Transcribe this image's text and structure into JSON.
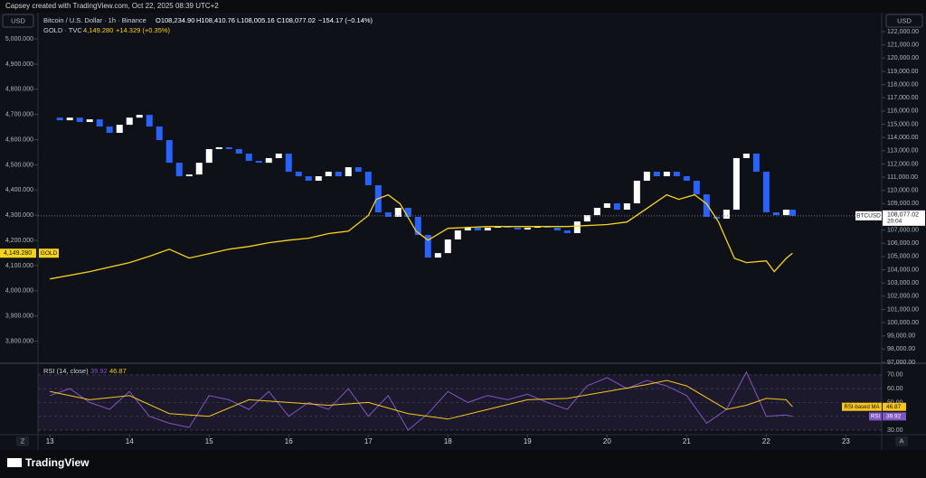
{
  "header": "Capsey created with TradingView.com, Oct 22, 2025 08:39 UTC+2",
  "axis_unit": "USD",
  "buttons": {
    "left": "Z",
    "right": "A"
  },
  "footer": {
    "logo": "TradingView"
  },
  "chart_data": [
    {
      "type": "candlestick",
      "legend": {
        "title": "Bitcoin / U.S. Dollar · 1h · Binance",
        "ohlc": [
          "O108,234.90",
          "H108,410.76",
          "L108,005.16",
          "C108,077.02"
        ],
        "change": "−154.17 (−0.14%)",
        "gold_title": "GOLD · TVC",
        "gold_price": "4,149.280",
        "gold_change": "+14.329 (+0.35%)"
      },
      "xlim": [
        12.85,
        23.45
      ],
      "xticks": [
        13,
        14,
        15,
        16,
        17,
        18,
        19,
        20,
        21,
        22,
        23
      ],
      "ylim": [
        3716,
        5097
      ],
      "yticks": [
        {
          "value": 3800,
          "label": "3,800.000"
        },
        {
          "value": 3900,
          "label": "3,900.000"
        },
        {
          "value": 4000,
          "label": "4,000.000"
        },
        {
          "value": 4100,
          "label": "4,100.000"
        },
        {
          "value": 4200,
          "label": "4,200.000"
        },
        {
          "value": 4300,
          "label": "4,300.000"
        },
        {
          "value": 4400,
          "label": "4,400.000"
        },
        {
          "value": 4500,
          "label": "4,500.000"
        },
        {
          "value": 4600,
          "label": "4,600.000"
        },
        {
          "value": 4700,
          "label": "4,700.000"
        },
        {
          "value": 4800,
          "label": "4,800.000"
        },
        {
          "value": 4900,
          "label": "4,900.000"
        },
        {
          "value": 5000,
          "label": "5,000.000"
        }
      ],
      "y2lim": [
        97000,
        123300
      ],
      "y2ticks": [
        {
          "value": 97000,
          "label": "97,000.00"
        },
        {
          "value": 98000,
          "label": "98,000.00"
        },
        {
          "value": 99000,
          "label": "99,000.00"
        },
        {
          "value": 100000,
          "label": "100,000.00"
        },
        {
          "value": 101000,
          "label": "101,000.00"
        },
        {
          "value": 102000,
          "label": "102,000.00"
        },
        {
          "value": 103000,
          "label": "103,000.00"
        },
        {
          "value": 104000,
          "label": "104,000.00"
        },
        {
          "value": 105000,
          "label": "105,000.00"
        },
        {
          "value": 106000,
          "label": "106,000.00"
        },
        {
          "value": 107000,
          "label": "107,000.00"
        },
        {
          "value": 108000,
          "label": "108,000.00"
        },
        {
          "value": 109000,
          "label": "109,000.00"
        },
        {
          "value": 110000,
          "label": "110,000.00"
        },
        {
          "value": 111000,
          "label": "111,000.00"
        },
        {
          "value": 112000,
          "label": "112,000.00"
        },
        {
          "value": 113000,
          "label": "113,000.00"
        },
        {
          "value": 114000,
          "label": "114,000.00"
        },
        {
          "value": 115000,
          "label": "115,000.00"
        },
        {
          "value": 116000,
          "label": "116,000.00"
        },
        {
          "value": 117000,
          "label": "117,000.00"
        },
        {
          "value": 118000,
          "label": "118,000.00"
        },
        {
          "value": 119000,
          "label": "119,000.00"
        },
        {
          "value": 120000,
          "label": "120,000.00"
        },
        {
          "value": 121000,
          "label": "121,000.00"
        },
        {
          "value": 122000,
          "label": "122,000.00"
        }
      ],
      "series": [
        {
          "name": "BTCUSD",
          "type": "candlestick",
          "axis": "y2",
          "up_color": "#ffffff",
          "down_color": "#2962ff",
          "last_label": "108,077.02",
          "countdown": "20:04",
          "x": [
            13,
            13.125,
            13.25,
            13.375,
            13.5,
            13.625,
            13.75,
            13.875,
            14,
            14.125,
            14.25,
            14.375,
            14.5,
            14.625,
            14.75,
            14.875,
            15,
            15.125,
            15.25,
            15.375,
            15.5,
            15.625,
            15.75,
            15.875,
            16,
            16.125,
            16.25,
            16.375,
            16.5,
            16.625,
            16.75,
            16.875,
            17,
            17.125,
            17.25,
            17.375,
            17.5,
            17.625,
            17.75,
            17.875,
            18,
            18.125,
            18.25,
            18.375,
            18.5,
            18.625,
            18.75,
            18.875,
            19,
            19.125,
            19.25,
            19.375,
            19.5,
            19.625,
            19.75,
            19.875,
            20,
            20.125,
            20.25,
            20.375,
            20.5,
            20.625,
            20.75,
            20.875,
            21,
            21.125,
            21.25,
            21.375,
            21.5,
            21.625,
            21.75,
            21.875,
            22,
            22.125,
            22.25,
            22.33
          ],
          "values": [
            115500,
            115300,
            115500,
            115170,
            115370,
            114830,
            114350,
            114960,
            115500,
            115710,
            114830,
            113800,
            112090,
            111070,
            111200,
            112090,
            113120,
            113260,
            113120,
            112780,
            112230,
            112090,
            112440,
            112780,
            111410,
            111070,
            110730,
            111070,
            111410,
            111070,
            111750,
            111410,
            110390,
            108340,
            108000,
            108680,
            108000,
            106630,
            104920,
            105260,
            106290,
            106970,
            107180,
            106970,
            107180,
            107310,
            107180,
            107040,
            107180,
            107310,
            107180,
            106970,
            106770,
            107650,
            108130,
            108680,
            109020,
            108540,
            109020,
            110730,
            111410,
            111070,
            111410,
            111070,
            110730,
            109700,
            108000,
            107860,
            108540,
            112440,
            112780,
            111410,
            108340,
            108130,
            108540,
            108077.02
          ]
        },
        {
          "name": "GOLD",
          "type": "line",
          "axis": "y",
          "color": "#f7d21e",
          "last_label": "4,149.280",
          "x": [
            13,
            13.5,
            14,
            14.25,
            14.5,
            14.75,
            15,
            15.25,
            15.5,
            15.75,
            16,
            16.25,
            16.5,
            16.75,
            17,
            17.1,
            17.25,
            17.4,
            17.6,
            17.75,
            18,
            18.5,
            19,
            19.5,
            20,
            20.25,
            20.5,
            20.75,
            20.9,
            21.1,
            21.25,
            21.4,
            21.6,
            21.75,
            22,
            22.1,
            22.25,
            22.33
          ],
          "values": [
            4047,
            4076,
            4112,
            4137,
            4165,
            4130,
            4147,
            4165,
            4176,
            4191,
            4201,
            4209,
            4227,
            4237,
            4299,
            4363,
            4381,
            4345,
            4237,
            4201,
            4248,
            4255,
            4255,
            4255,
            4263,
            4273,
            4327,
            4381,
            4363,
            4381,
            4345,
            4273,
            4129,
            4112,
            4119,
            4076,
            4129,
            4149.28
          ]
        }
      ]
    },
    {
      "type": "line",
      "title": "RSI (14, close)",
      "xlim": [
        12.85,
        23.45
      ],
      "ylim": [
        27.4,
        77.1
      ],
      "yticks": [
        {
          "value": 30,
          "label": "30.00"
        },
        {
          "value": 40,
          "label": "40.00"
        },
        {
          "value": 50,
          "label": "50.00"
        },
        {
          "value": 60,
          "label": "60.00"
        },
        {
          "value": 70,
          "label": "70.00"
        }
      ],
      "band": [
        30,
        70
      ],
      "series": [
        {
          "name": "RSI",
          "color": "#7e57c2",
          "x": [
            13,
            13.25,
            13.5,
            13.75,
            14,
            14.25,
            14.5,
            14.75,
            15,
            15.25,
            15.5,
            15.75,
            16,
            16.25,
            16.5,
            16.75,
            17,
            17.25,
            17.5,
            17.75,
            18,
            18.25,
            18.5,
            18.75,
            19,
            19.25,
            19.5,
            19.75,
            20,
            20.25,
            20.5,
            20.75,
            21,
            21.25,
            21.5,
            21.75,
            22,
            22.25,
            22.33
          ],
          "values": [
            55,
            60,
            50,
            45,
            58,
            40,
            35,
            32,
            55,
            52,
            45,
            58,
            40,
            50,
            45,
            60,
            40,
            55,
            30,
            42,
            58,
            50,
            55,
            52,
            56,
            50,
            45,
            62,
            68,
            60,
            66,
            62,
            55,
            35,
            45,
            72,
            40,
            41,
            39.92
          ]
        },
        {
          "name": "RSI-based MA",
          "color": "#f7c51e",
          "x": [
            13,
            13.5,
            14,
            14.5,
            15,
            15.5,
            16,
            16.5,
            17,
            17.5,
            18,
            18.5,
            19,
            19.5,
            20,
            20.5,
            20.75,
            21,
            21.5,
            21.75,
            22,
            22.25,
            22.33
          ],
          "values": [
            58,
            52,
            55,
            42,
            40,
            52,
            50,
            48,
            50,
            42,
            38,
            45,
            52,
            53,
            58,
            63,
            66,
            62,
            45,
            48,
            53,
            52,
            46.87
          ]
        }
      ]
    }
  ]
}
